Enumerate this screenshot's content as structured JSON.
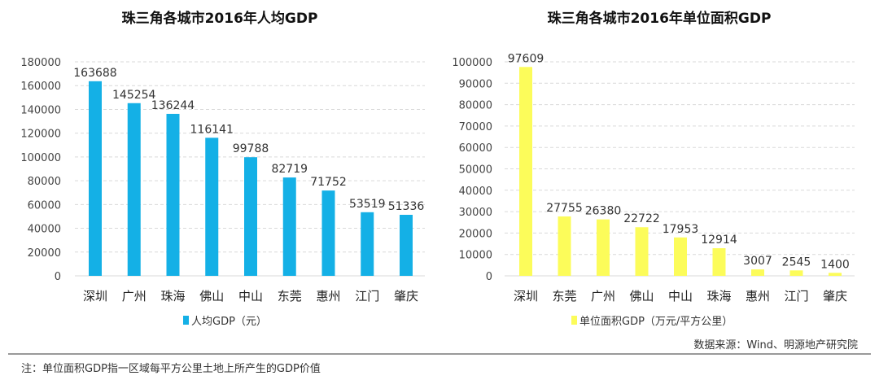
{
  "chart_data": [
    {
      "type": "bar",
      "title": "珠三角各城市2016年人均GDP",
      "categories": [
        "深圳",
        "广州",
        "珠海",
        "佛山",
        "中山",
        "东莞",
        "惠州",
        "江门",
        "肇庆"
      ],
      "values": [
        163688,
        145254,
        136244,
        116141,
        99788,
        82719,
        71752,
        53519,
        51336
      ],
      "ylim": [
        0,
        180000
      ],
      "yticks": [
        0,
        20000,
        40000,
        60000,
        80000,
        100000,
        120000,
        140000,
        160000,
        180000
      ],
      "legend": "人均GDP（元）",
      "legend_position": "bottom",
      "color": "#14b0e6",
      "grid": true
    },
    {
      "type": "bar",
      "title": "珠三角各城市2016年单位面积GDP",
      "categories": [
        "深圳",
        "东莞",
        "广州",
        "佛山",
        "中山",
        "珠海",
        "惠州",
        "江门",
        "肇庆"
      ],
      "values": [
        97609,
        27755,
        26380,
        22722,
        17953,
        12914,
        3007,
        2545,
        1400
      ],
      "ylim": [
        0,
        100000
      ],
      "yticks": [
        0,
        10000,
        20000,
        30000,
        40000,
        50000,
        60000,
        70000,
        80000,
        90000,
        100000
      ],
      "legend": "单位面积GDP（万元/平方公里）",
      "legend_position": "bottom",
      "color": "#fcfc5a",
      "grid": true
    }
  ],
  "source": "数据来源：Wind、明源地产研究院",
  "note": "注：单位面积GDP指一区域每平方公里土地上所产生的GDP价值"
}
